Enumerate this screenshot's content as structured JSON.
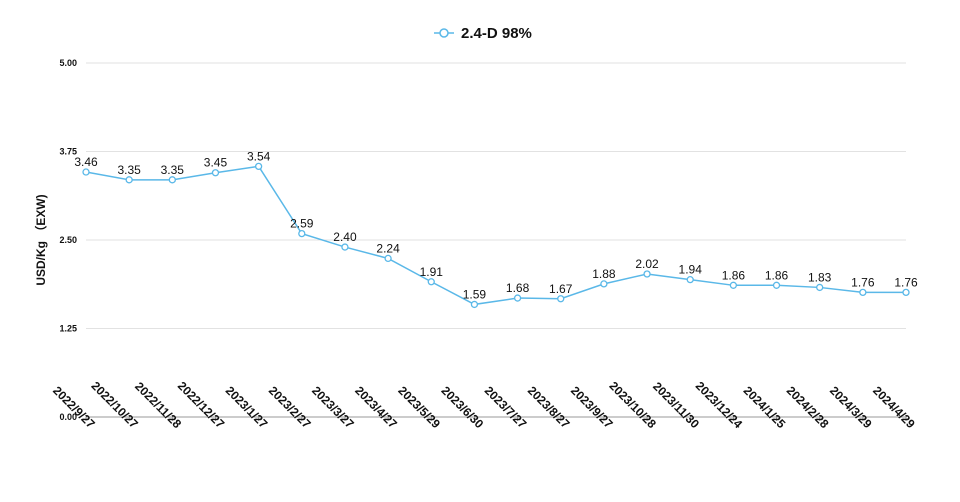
{
  "chart_data": {
    "type": "line",
    "title": "",
    "xlabel": "",
    "ylabel": "USD/Kg （EXW)",
    "legend_position": "top-center",
    "grid": true,
    "ylim": [
      0,
      5
    ],
    "y_ticks": [
      "0.00",
      "1.25",
      "2.50",
      "3.75",
      "5.00"
    ],
    "y_tick_values": [
      0,
      1.25,
      2.5,
      3.75,
      5
    ],
    "categories": [
      "2022/9/27",
      "2022/10/27",
      "2022/11/28",
      "2022/12/27",
      "2023/1/27",
      "2023/2/27",
      "2023/3/27",
      "2023/4/27",
      "2023/5/29",
      "2023/6/30",
      "2023/7/27",
      "2023/8/27",
      "2023/9/27",
      "2023/10/28",
      "2023/11/30",
      "2023/12/24",
      "2024/1/25",
      "2024/2/28",
      "2024/3/29",
      "2024/4/29"
    ],
    "series": [
      {
        "name": "2.4-D 98%",
        "color": "#5ab8e8",
        "values": [
          3.46,
          3.35,
          3.35,
          3.45,
          3.54,
          2.59,
          2.4,
          2.24,
          1.91,
          1.59,
          1.68,
          1.67,
          1.88,
          2.02,
          1.94,
          1.86,
          1.86,
          1.83,
          1.76,
          1.76
        ],
        "labels": [
          "3.46",
          "3.35",
          "3.35",
          "3.45",
          "3.54",
          "2.59",
          "2.40",
          "2.24",
          "1.91",
          "1.59",
          "1.68",
          "1.67",
          "1.88",
          "2.02",
          "1.94",
          "1.86",
          "1.86",
          "1.83",
          "1.76",
          "1.76"
        ]
      }
    ]
  }
}
